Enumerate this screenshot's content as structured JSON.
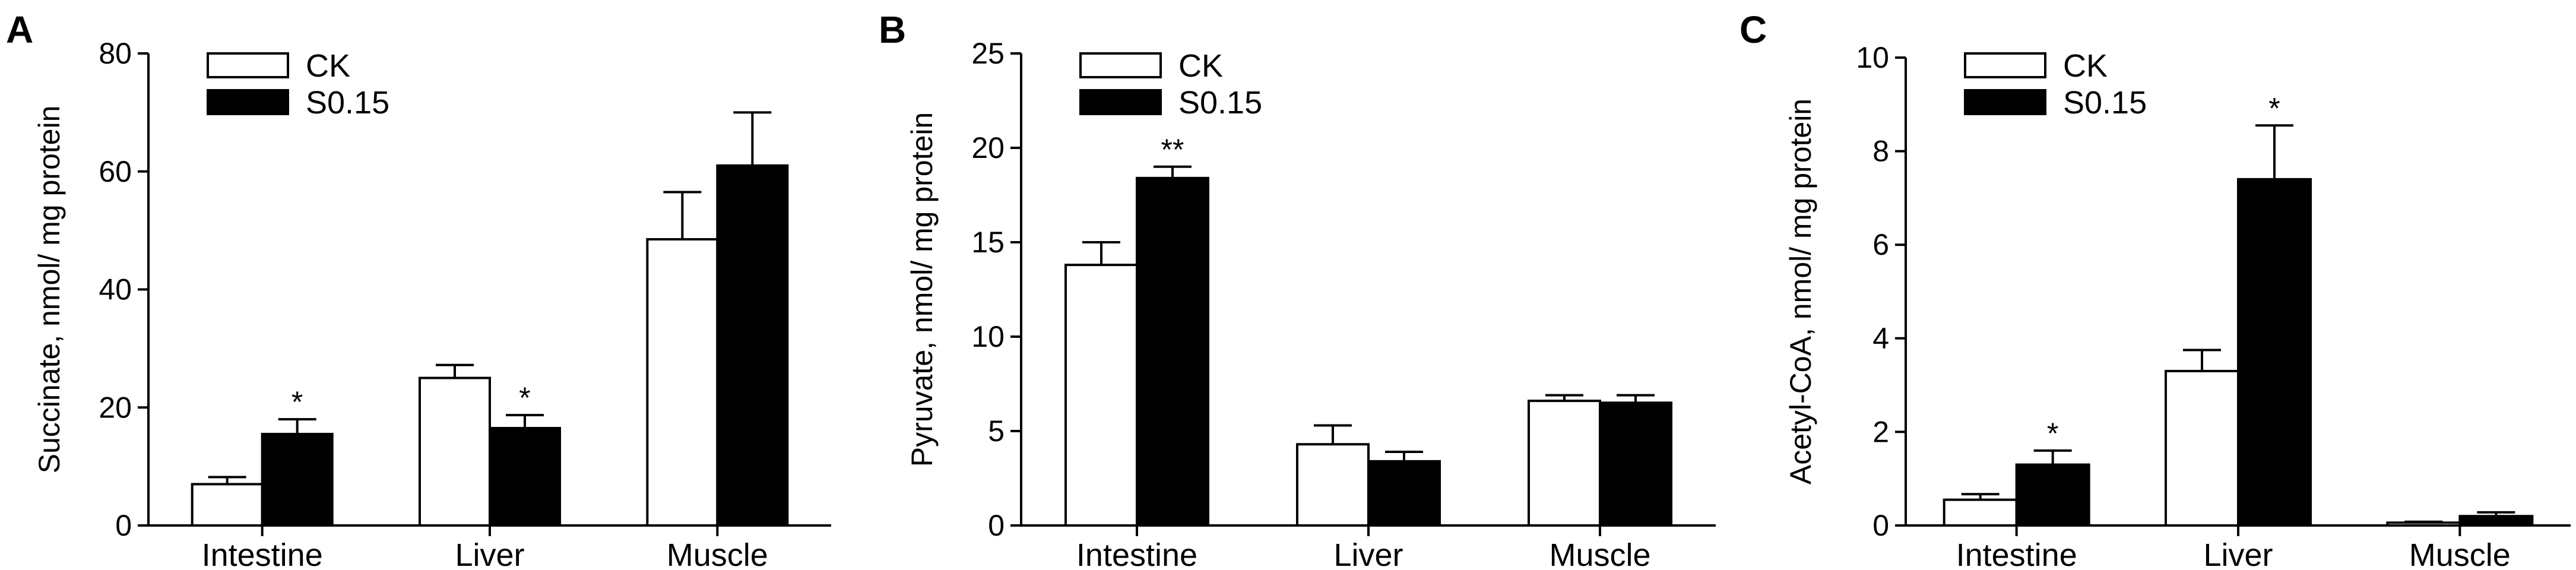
{
  "chart_data": [
    {
      "type": "bar",
      "panel_label": "A",
      "ylabel": "Succinate, nmol/ mg protein",
      "ylim": [
        0,
        80
      ],
      "yticks": [
        0,
        20,
        40,
        60,
        80
      ],
      "categories": [
        "Intestine",
        "Liver",
        "Muscle"
      ],
      "series": [
        {
          "name": "CK",
          "values": [
            7.0,
            25.0,
            48.5
          ],
          "errors": [
            1.2,
            2.2,
            8.0
          ]
        },
        {
          "name": "S0.15",
          "values": [
            15.5,
            16.5,
            61.0
          ],
          "errors": [
            2.5,
            2.2,
            9.0
          ]
        }
      ],
      "annotations": [
        {
          "category": "Intestine",
          "series": "S0.15",
          "text": "*"
        },
        {
          "category": "Liver",
          "series": "S0.15",
          "text": "*"
        }
      ],
      "legend": "top-left"
    },
    {
      "type": "bar",
      "panel_label": "B",
      "ylabel": "Pyruvate, nmol/ mg protein",
      "ylim": [
        0,
        25
      ],
      "yticks": [
        0,
        5,
        10,
        15,
        20,
        25
      ],
      "categories": [
        "Intestine",
        "Liver",
        "Muscle"
      ],
      "series": [
        {
          "name": "CK",
          "values": [
            13.8,
            4.3,
            6.6
          ],
          "errors": [
            1.2,
            1.0,
            0.3
          ]
        },
        {
          "name": "S0.15",
          "values": [
            18.4,
            3.4,
            6.5
          ],
          "errors": [
            0.6,
            0.5,
            0.4
          ]
        }
      ],
      "annotations": [
        {
          "category": "Intestine",
          "series": "S0.15",
          "text": "**"
        }
      ],
      "legend": "top-left"
    },
    {
      "type": "bar",
      "panel_label": "C",
      "ylabel": "Acetyl-CoA, nmol/ mg protein",
      "ylim": [
        0,
        10
      ],
      "yticks": [
        0,
        2,
        4,
        6,
        8,
        10
      ],
      "categories": [
        "Intestine",
        "Liver",
        "Muscle"
      ],
      "series": [
        {
          "name": "CK",
          "values": [
            0.55,
            3.3,
            0.06
          ],
          "errors": [
            0.12,
            0.45,
            0.02
          ]
        },
        {
          "name": "S0.15",
          "values": [
            1.3,
            7.4,
            0.2
          ],
          "errors": [
            0.3,
            1.15,
            0.08
          ]
        }
      ],
      "annotations": [
        {
          "category": "Intestine",
          "series": "S0.15",
          "text": "*"
        },
        {
          "category": "Liver",
          "series": "S0.15",
          "text": "*"
        }
      ],
      "legend": "top-left"
    }
  ]
}
